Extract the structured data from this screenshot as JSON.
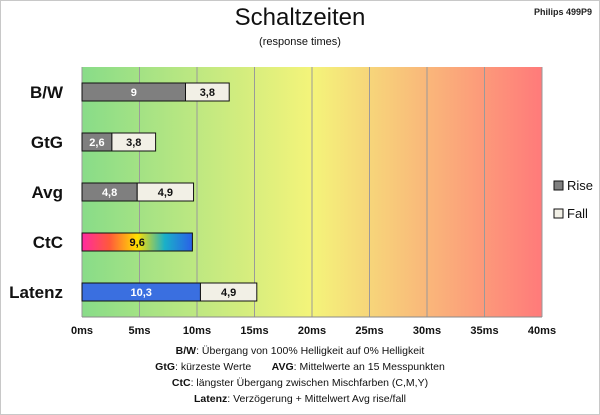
{
  "header": {
    "title": "Schaltzeiten",
    "subtitle": "(response times)",
    "badge": "Philips 499P9"
  },
  "colors": {
    "rise": "#7f7f7f",
    "fall": "#f2f0e6",
    "latenz": "#3a6fe0",
    "gradient": [
      "#88dc88",
      "#f4f47a",
      "#ff7a7a"
    ]
  },
  "legend_icons": [
    "gray-square-icon",
    "light-square-icon"
  ],
  "chart_data": {
    "type": "bar",
    "orientation": "horizontal",
    "stacked": true,
    "title": "Schaltzeiten",
    "subtitle": "(response times)",
    "categories": [
      "B/W",
      "GtG",
      "Avg",
      "CtC",
      "Latenz"
    ],
    "series": [
      {
        "name": "Rise",
        "values": [
          9,
          2.6,
          4.8,
          9.6,
          10.3
        ],
        "labels": [
          "9",
          "2,6",
          "4,8",
          "9,6",
          "10,3"
        ]
      },
      {
        "name": "Fall",
        "values": [
          3.8,
          3.8,
          4.9,
          null,
          4.9
        ],
        "labels": [
          "3,8",
          "3,8",
          "4,9",
          "",
          "4,9"
        ]
      }
    ],
    "xlim": [
      0,
      40
    ],
    "xticks": [
      0,
      5,
      10,
      15,
      20,
      25,
      30,
      35,
      40
    ],
    "xtick_labels": [
      "0ms",
      "5ms",
      "10ms",
      "15ms",
      "20ms",
      "25ms",
      "30ms",
      "35ms",
      "40ms"
    ],
    "grid": true,
    "legend": "right",
    "legend_entries": [
      "Rise",
      "Fall"
    ]
  },
  "notes": {
    "line1": {
      "key": "B/W",
      "text": ":  Übergang von 100% Helligkeit auf 0% Helligkeit"
    },
    "line2": {
      "key": "GtG",
      "text": ": kürzeste  Werte",
      "key2": "AVG",
      "text2": ": Mittelwerte  an 15 Messpunkten"
    },
    "line3": {
      "key": "CtC",
      "text": ": längster Übergang  zwischen Mischfarben  (C,M,Y)"
    },
    "line4": {
      "key": "Latenz",
      "text": ": Verzögerung  + Mittelwert Avg rise/fall"
    }
  }
}
